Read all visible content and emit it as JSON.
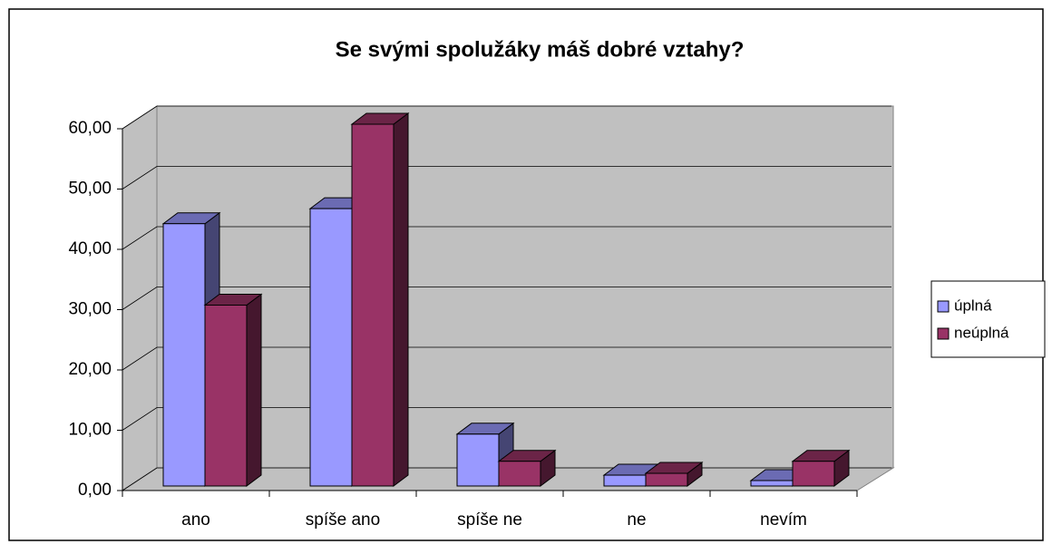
{
  "chart_data": {
    "type": "bar3d",
    "title": "Se svými spolužáky máš dobré vztahy?",
    "categories": [
      "ano",
      "spíše ano",
      "spíše ne",
      "ne",
      "nevím"
    ],
    "series": [
      {
        "name": "úplná",
        "color": "#9999ff",
        "values": [
          43.5,
          46.0,
          8.6,
          1.8,
          0.9
        ]
      },
      {
        "name": "neúplná",
        "color": "#993366",
        "values": [
          30.0,
          60.0,
          4.1,
          2.1,
          4.1
        ]
      }
    ],
    "ylim": [
      0,
      60
    ],
    "yticks": [
      {
        "value": 0,
        "label": "0,00"
      },
      {
        "value": 10,
        "label": "10,00"
      },
      {
        "value": 20,
        "label": "20,00"
      },
      {
        "value": 30,
        "label": "30,00"
      },
      {
        "value": 40,
        "label": "40,00"
      },
      {
        "value": 50,
        "label": "50,00"
      },
      {
        "value": 60,
        "label": "60,00"
      }
    ],
    "grid": true,
    "legend": "right"
  }
}
